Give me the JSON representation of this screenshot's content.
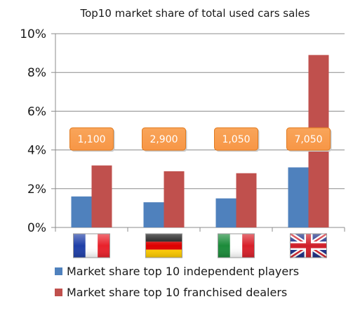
{
  "chart_data": {
    "type": "bar",
    "title": "Top10 market share of total used cars sales",
    "xlabel": "",
    "ylabel": "",
    "ylim": [
      0,
      10
    ],
    "yticks": [
      "0%",
      "2%",
      "4%",
      "6%",
      "8%",
      "10%"
    ],
    "categories": [
      "France",
      "Germany",
      "Italy",
      "United Kingdom"
    ],
    "category_icons": [
      "flag-france-icon",
      "flag-germany-icon",
      "flag-italy-icon",
      "flag-uk-icon"
    ],
    "series": [
      {
        "name": "Market share top 10 independent players",
        "color": "#4f81bd",
        "values": [
          1.6,
          1.3,
          1.5,
          3.1
        ]
      },
      {
        "name": "Market share top 10 franchised dealers",
        "color": "#c0504d",
        "values": [
          3.2,
          2.9,
          2.8,
          8.9
        ]
      }
    ],
    "annotations": [
      "1,100",
      "2,900",
      "1,050",
      "7,050"
    ],
    "annotation_color": "#f79646",
    "grid": true,
    "legend_position": "bottom"
  }
}
